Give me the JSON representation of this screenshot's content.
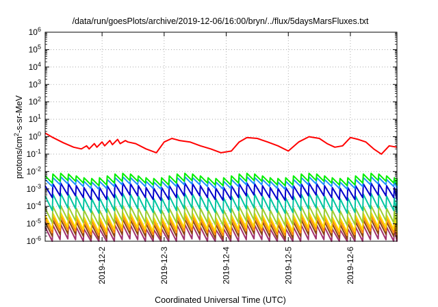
{
  "chart_data": {
    "type": "line",
    "title": "/data/run/goesPlots/archive/2019-12-06/16:00/bryn/../flux/5daysMarsFluxes.txt",
    "xlabel": "Coordinated Universal Time (UTC)",
    "ylabel": "protons/cm²-s-sr-MeV",
    "x_start": "2019-12-01 02:00",
    "x_end": "2019-12-06 18:00",
    "x_ticks": [
      "2019-12-2",
      "2019-12-3",
      "2019-12-4",
      "2019-12-5",
      "2019-12-6"
    ],
    "y_scale": "log",
    "ylim": [
      1e-06,
      1000000.0
    ],
    "y_ticks": [
      {
        "base": "10",
        "exp": "-6"
      },
      {
        "base": "10",
        "exp": "-5"
      },
      {
        "base": "10",
        "exp": "-4"
      },
      {
        "base": "10",
        "exp": "-3"
      },
      {
        "base": "10",
        "exp": "-2"
      },
      {
        "base": "10",
        "exp": "-1"
      },
      {
        "base": "10",
        "exp": "0"
      },
      {
        "base": "10",
        "exp": "1"
      },
      {
        "base": "10",
        "exp": "2"
      },
      {
        "base": "10",
        "exp": "3"
      },
      {
        "base": "10",
        "exp": "4"
      },
      {
        "base": "10",
        "exp": "5"
      },
      {
        "base": "10",
        "exp": "6"
      }
    ],
    "grid": true,
    "series": [
      {
        "color": "#ff0000",
        "x": [
          "2019-12-01 02:00",
          "2019-12-01 05:00",
          "2019-12-01 09:00",
          "2019-12-01 13:00",
          "2019-12-01 16:00",
          "2019-12-01 18:00",
          "2019-12-01 19:00",
          "2019-12-01 21:00",
          "2019-12-01 22:00",
          "2019-12-02 00:00",
          "2019-12-02 01:00",
          "2019-12-02 03:00",
          "2019-12-02 04:00",
          "2019-12-02 06:00",
          "2019-12-02 07:00",
          "2019-12-02 09:00",
          "2019-12-02 10:00",
          "2019-12-02 13:00",
          "2019-12-02 17:00",
          "2019-12-02 21:00",
          "2019-12-03 00:00",
          "2019-12-03 03:00",
          "2019-12-03 06:00",
          "2019-12-03 10:00",
          "2019-12-03 14:00",
          "2019-12-03 18:00",
          "2019-12-03 22:00",
          "2019-12-04 02:00",
          "2019-12-04 05:00",
          "2019-12-04 08:00",
          "2019-12-04 12:00",
          "2019-12-04 16:00",
          "2019-12-04 20:00",
          "2019-12-05 00:00",
          "2019-12-05 04:00",
          "2019-12-05 08:00",
          "2019-12-05 12:00",
          "2019-12-05 15:00",
          "2019-12-05 18:00",
          "2019-12-05 21:00",
          "2019-12-06 00:00",
          "2019-12-06 03:00",
          "2019-12-06 06:00",
          "2019-12-06 09:00",
          "2019-12-06 12:00",
          "2019-12-06 15:00",
          "2019-12-06 18:00"
        ],
        "y": [
          1.6,
          0.9,
          0.45,
          0.25,
          0.2,
          0.3,
          0.2,
          0.4,
          0.25,
          0.5,
          0.3,
          0.6,
          0.35,
          0.7,
          0.4,
          0.6,
          0.5,
          0.4,
          0.2,
          0.12,
          0.5,
          0.8,
          0.6,
          0.5,
          0.3,
          0.2,
          0.12,
          0.15,
          0.5,
          0.9,
          0.8,
          0.5,
          0.3,
          0.15,
          0.5,
          1.0,
          0.8,
          0.4,
          0.25,
          0.3,
          0.9,
          0.7,
          0.5,
          0.2,
          0.1,
          0.3,
          0.25
        ]
      },
      {
        "color": "#00ee00",
        "base": 0.0035,
        "amp": 1.6
      },
      {
        "color": "#1e90ff",
        "base": 0.0022,
        "amp": 1.6
      },
      {
        "color": "#0000cc",
        "base": 0.0007,
        "amp": 2.2
      },
      {
        "color": "#00c5a0",
        "base": 0.00015,
        "amp": 2.6
      },
      {
        "color": "#9acd32",
        "base": 3e-05,
        "amp": 2.6
      },
      {
        "color": "#ffd700",
        "base": 1.2e-05,
        "amp": 2.6
      },
      {
        "color": "#ff8c00",
        "base": 8e-06,
        "amp": 2.6
      },
      {
        "color": "#8b4513",
        "base": 5e-06,
        "amp": 2.6
      },
      {
        "color": "#a0306e",
        "base": 2.5e-06,
        "amp": 2.6
      }
    ]
  }
}
